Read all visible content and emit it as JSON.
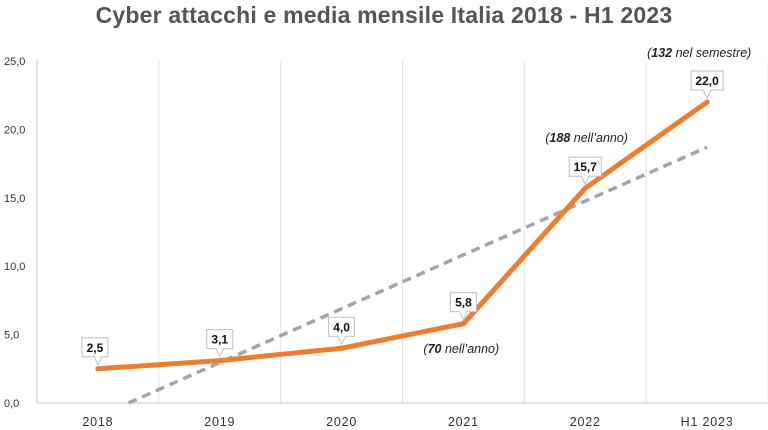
{
  "chart_data": {
    "type": "line",
    "title": "Cyber attacchi e media mensile Italia 2018 - H1 2023",
    "xlabel": "",
    "ylabel": "",
    "categories": [
      "2018",
      "2019",
      "2020",
      "2021",
      "2022",
      "H1 2023"
    ],
    "y_ticks": [
      "0,0",
      "5,0",
      "10,0",
      "15,0",
      "20,0",
      "25,0"
    ],
    "ylim": [
      0,
      25
    ],
    "grid": "vertical",
    "legend": "none",
    "series": [
      {
        "values": [
          2.5,
          3.1,
          4.0,
          5.8,
          15.7,
          22.0
        ],
        "data_labels": [
          "2,5",
          "3,1",
          "4,0",
          "5,8",
          "15,7",
          "22,0"
        ],
        "color": "#ED7D31",
        "style": "solid"
      },
      {
        "trendline": true,
        "from": [
          0.25,
          0.0
        ],
        "to": [
          5.0,
          18.7
        ],
        "color": "#A5A5A5",
        "style": "dashed"
      }
    ],
    "annotations": [
      {
        "bold": "70",
        "text": " nell’anno)",
        "prefix": "(",
        "category": "2021"
      },
      {
        "bold": "188",
        "text": " nell’anno)",
        "prefix": "(",
        "category": "2022"
      },
      {
        "bold": "132",
        "text": " nel semestre)",
        "prefix": "(",
        "category": "H1 2023"
      }
    ]
  }
}
